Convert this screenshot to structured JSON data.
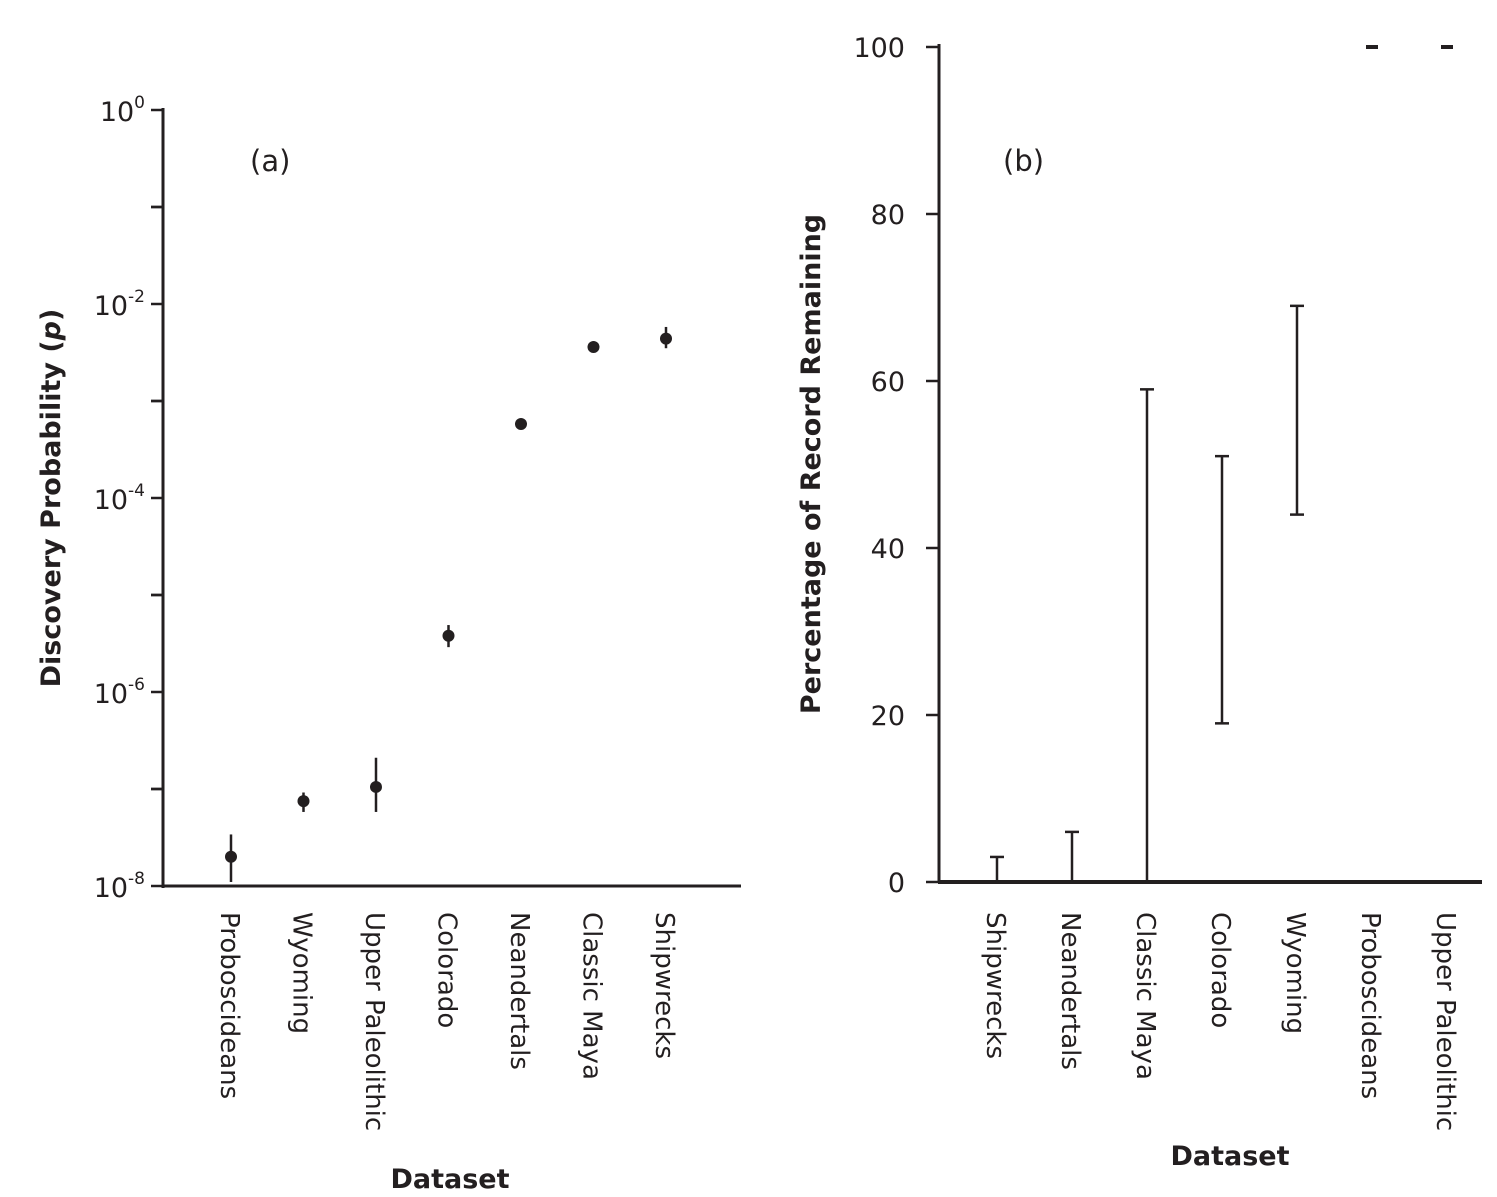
{
  "chart_data": [
    {
      "type": "scatter",
      "panel_label": "(a)",
      "xlabel": "Dataset",
      "ylabel": "Discovery Probability (p)",
      "ylabel_main": "Discovery Probability (",
      "ylabel_var": "p",
      "ylabel_end": ")",
      "yscale": "log",
      "ylim": [
        1e-08,
        1
      ],
      "yticks": [
        {
          "value": 1e-08,
          "base": "10",
          "exp": "-8"
        },
        {
          "value": 1e-06,
          "base": "10",
          "exp": "-6"
        },
        {
          "value": 0.0001,
          "base": "10",
          "exp": "-4"
        },
        {
          "value": 0.01,
          "base": "10",
          "exp": "-2"
        },
        {
          "value": 1,
          "base": "10",
          "exp": "0"
        }
      ],
      "categories": [
        "Proboscideans",
        "Wyoming",
        "Upper Paleolithic",
        "Colorado",
        "Neandertals",
        "Classic Maya",
        "Shipwrecks"
      ],
      "values": [
        2e-08,
        7.5e-08,
        1.05e-07,
        3.8e-06,
        0.00058,
        0.0036,
        0.0044
      ],
      "error_low": [
        1.1e-08,
        5.8e-08,
        5.8e-08,
        2.9e-06,
        0.00056,
        0.0035,
        0.0035
      ],
      "error_high": [
        3.4e-08,
        9.2e-08,
        2.1e-07,
        4.9e-06,
        0.0006,
        0.0037,
        0.0058
      ]
    },
    {
      "type": "errorbar",
      "panel_label": "(b)",
      "xlabel": "Dataset",
      "ylabel": "Percentage of Record Remaining",
      "ylim": [
        0,
        100
      ],
      "yticks": [
        {
          "value": 0,
          "label": "0"
        },
        {
          "value": 20,
          "label": "20"
        },
        {
          "value": 40,
          "label": "40"
        },
        {
          "value": 60,
          "label": "60"
        },
        {
          "value": 80,
          "label": "80"
        },
        {
          "value": 100,
          "label": "100"
        }
      ],
      "categories": [
        "Shipwrecks",
        "Neandertals",
        "Classic Maya",
        "Colorado",
        "Wyoming",
        "Proboscideans",
        "Upper Paleolithic"
      ],
      "low": [
        0,
        0,
        0,
        19,
        44,
        100,
        100
      ],
      "high": [
        3,
        6,
        59,
        51,
        69,
        100,
        100
      ]
    }
  ]
}
